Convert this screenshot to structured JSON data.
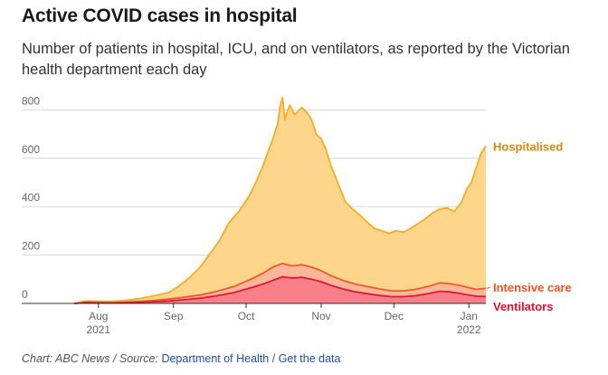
{
  "title": "Active COVID cases in hospital",
  "subtitle": "Number of patients in hospital, ICU, and on ventilators, as reported by the Victorian health department each day",
  "footer": {
    "prefix": "Chart: ABC News / Source: ",
    "source_link": "Department of Health",
    "separator": " / ",
    "data_link": "Get the data"
  },
  "colors": {
    "hospitalised_fill": "#fdd68b",
    "hospitalised_line": "#f4ac28",
    "hospitalised_label": "#d68a13",
    "icu_fill": "#fbb79a",
    "icu_line": "#f0582c",
    "icu_label": "#ee5520",
    "vent_fill": "#f77f8a",
    "vent_line": "#e01a2e",
    "vent_label": "#e0112b",
    "grid": "#d6d6d6",
    "axis": "#333333",
    "tick_text": "#666666"
  },
  "chart_data": {
    "type": "area",
    "x_unit": "date",
    "ylim": [
      0,
      850
    ],
    "grid": true,
    "y_ticks": [
      {
        "value": 0,
        "label": "0"
      },
      {
        "value": 200,
        "label": "200"
      },
      {
        "value": 400,
        "label": "400"
      },
      {
        "value": 600,
        "label": "600"
      },
      {
        "value": 800,
        "label": "800"
      }
    ],
    "x_ticks": [
      {
        "date": "2021-08-01",
        "label": "Aug",
        "sublabel": "2021"
      },
      {
        "date": "2021-09-01",
        "label": "Sep",
        "sublabel": ""
      },
      {
        "date": "2021-10-01",
        "label": "Oct",
        "sublabel": ""
      },
      {
        "date": "2021-11-01",
        "label": "Nov",
        "sublabel": ""
      },
      {
        "date": "2021-12-01",
        "label": "Dec",
        "sublabel": ""
      },
      {
        "date": "2022-01-01",
        "label": "Jan",
        "sublabel": "2022"
      }
    ],
    "x_start": "2021-07-22",
    "x_end": "2022-01-08",
    "series": [
      {
        "name": "Hospitalised",
        "points": [
          [
            "2021-07-22",
            0
          ],
          [
            "2021-07-27",
            10
          ],
          [
            "2021-08-05",
            8
          ],
          [
            "2021-08-12",
            12
          ],
          [
            "2021-08-18",
            20
          ],
          [
            "2021-08-24",
            32
          ],
          [
            "2021-08-30",
            45
          ],
          [
            "2021-09-03",
            70
          ],
          [
            "2021-09-08",
            110
          ],
          [
            "2021-09-12",
            150
          ],
          [
            "2021-09-16",
            205
          ],
          [
            "2021-09-20",
            260
          ],
          [
            "2021-09-24",
            335
          ],
          [
            "2021-09-28",
            380
          ],
          [
            "2021-10-02",
            440
          ],
          [
            "2021-10-05",
            500
          ],
          [
            "2021-10-08",
            570
          ],
          [
            "2021-10-10",
            625
          ],
          [
            "2021-10-12",
            680
          ],
          [
            "2021-10-14",
            740
          ],
          [
            "2021-10-15",
            815
          ],
          [
            "2021-10-16",
            850
          ],
          [
            "2021-10-17",
            760
          ],
          [
            "2021-10-19",
            820
          ],
          [
            "2021-10-21",
            780
          ],
          [
            "2021-10-24",
            810
          ],
          [
            "2021-10-26",
            790
          ],
          [
            "2021-10-28",
            760
          ],
          [
            "2021-10-30",
            700
          ],
          [
            "2021-11-01",
            680
          ],
          [
            "2021-11-03",
            635
          ],
          [
            "2021-11-05",
            570
          ],
          [
            "2021-11-07",
            520
          ],
          [
            "2021-11-09",
            470
          ],
          [
            "2021-11-11",
            420
          ],
          [
            "2021-11-14",
            390
          ],
          [
            "2021-11-17",
            365
          ],
          [
            "2021-11-20",
            335
          ],
          [
            "2021-11-23",
            310
          ],
          [
            "2021-11-26",
            300
          ],
          [
            "2021-11-29",
            290
          ],
          [
            "2021-12-02",
            300
          ],
          [
            "2021-12-05",
            295
          ],
          [
            "2021-12-08",
            310
          ],
          [
            "2021-12-11",
            330
          ],
          [
            "2021-12-14",
            350
          ],
          [
            "2021-12-17",
            375
          ],
          [
            "2021-12-20",
            390
          ],
          [
            "2021-12-23",
            395
          ],
          [
            "2021-12-26",
            380
          ],
          [
            "2021-12-29",
            420
          ],
          [
            "2021-12-31",
            470
          ],
          [
            "2022-01-02",
            500
          ],
          [
            "2022-01-04",
            560
          ],
          [
            "2022-01-06",
            620
          ],
          [
            "2022-01-08",
            650
          ]
        ]
      },
      {
        "name": "Intensive care",
        "points": [
          [
            "2021-07-22",
            0
          ],
          [
            "2021-07-27",
            5
          ],
          [
            "2021-08-05",
            3
          ],
          [
            "2021-08-12",
            5
          ],
          [
            "2021-08-18",
            8
          ],
          [
            "2021-08-24",
            12
          ],
          [
            "2021-08-30",
            18
          ],
          [
            "2021-09-05",
            25
          ],
          [
            "2021-09-12",
            35
          ],
          [
            "2021-09-19",
            50
          ],
          [
            "2021-09-26",
            70
          ],
          [
            "2021-10-03",
            100
          ],
          [
            "2021-10-08",
            125
          ],
          [
            "2021-10-12",
            150
          ],
          [
            "2021-10-16",
            165
          ],
          [
            "2021-10-20",
            155
          ],
          [
            "2021-10-24",
            160
          ],
          [
            "2021-10-28",
            150
          ],
          [
            "2021-11-01",
            135
          ],
          [
            "2021-11-05",
            115
          ],
          [
            "2021-11-10",
            95
          ],
          [
            "2021-11-15",
            80
          ],
          [
            "2021-11-20",
            70
          ],
          [
            "2021-11-25",
            60
          ],
          [
            "2021-11-30",
            52
          ],
          [
            "2021-12-05",
            52
          ],
          [
            "2021-12-10",
            58
          ],
          [
            "2021-12-15",
            70
          ],
          [
            "2021-12-20",
            85
          ],
          [
            "2021-12-24",
            82
          ],
          [
            "2021-12-28",
            75
          ],
          [
            "2022-01-01",
            65
          ],
          [
            "2022-01-04",
            58
          ],
          [
            "2022-01-08",
            62
          ]
        ]
      },
      {
        "name": "Ventilators",
        "points": [
          [
            "2021-07-22",
            0
          ],
          [
            "2021-07-27",
            3
          ],
          [
            "2021-08-05",
            2
          ],
          [
            "2021-08-12",
            3
          ],
          [
            "2021-08-18",
            5
          ],
          [
            "2021-08-24",
            7
          ],
          [
            "2021-08-30",
            10
          ],
          [
            "2021-09-05",
            15
          ],
          [
            "2021-09-12",
            22
          ],
          [
            "2021-09-19",
            32
          ],
          [
            "2021-09-26",
            45
          ],
          [
            "2021-10-03",
            65
          ],
          [
            "2021-10-08",
            80
          ],
          [
            "2021-10-12",
            95
          ],
          [
            "2021-10-16",
            110
          ],
          [
            "2021-10-20",
            105
          ],
          [
            "2021-10-24",
            108
          ],
          [
            "2021-10-28",
            100
          ],
          [
            "2021-11-01",
            90
          ],
          [
            "2021-11-05",
            75
          ],
          [
            "2021-11-10",
            60
          ],
          [
            "2021-11-15",
            48
          ],
          [
            "2021-11-20",
            40
          ],
          [
            "2021-11-25",
            33
          ],
          [
            "2021-11-30",
            28
          ],
          [
            "2021-12-05",
            28
          ],
          [
            "2021-12-10",
            32
          ],
          [
            "2021-12-15",
            40
          ],
          [
            "2021-12-20",
            50
          ],
          [
            "2021-12-24",
            48
          ],
          [
            "2021-12-28",
            42
          ],
          [
            "2022-01-01",
            35
          ],
          [
            "2022-01-04",
            30
          ],
          [
            "2022-01-08",
            28
          ]
        ]
      }
    ],
    "series_labels": [
      "Hospitalised",
      "Intensive care",
      "Ventilators"
    ]
  }
}
